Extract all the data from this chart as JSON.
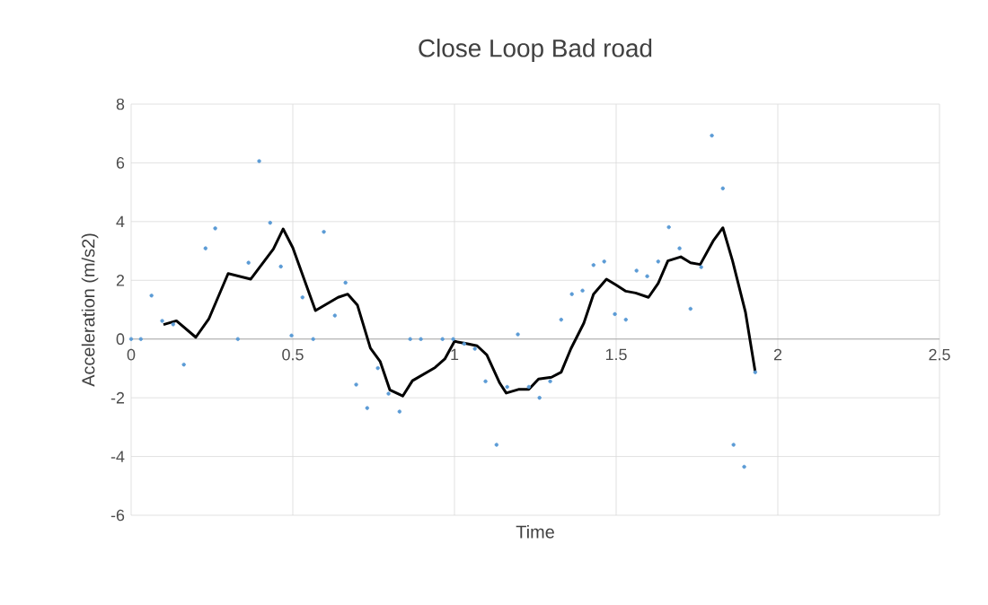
{
  "chart_data": {
    "type": "scatter",
    "title": "Close Loop Bad road",
    "xlabel": "Time",
    "ylabel": "Acceleration (m/s2)",
    "xlim": [
      0,
      2.5
    ],
    "xticks": [
      0,
      0.5,
      1,
      1.5,
      2,
      2.5
    ],
    "ylim": [
      -6,
      8
    ],
    "yticks": [
      -6,
      -4,
      -2,
      0,
      2,
      4,
      6,
      8
    ],
    "grid": true,
    "series": [
      {
        "color": "#5b9bd5",
        "marker": "circle",
        "x": [
          0,
          0.03,
          0.063,
          0.096,
          0.13,
          0.163,
          0.23,
          0.26,
          0.33,
          0.363,
          0.396,
          0.43,
          0.463,
          0.496,
          0.53,
          0.563,
          0.596,
          0.63,
          0.663,
          0.696,
          0.73,
          0.763,
          0.796,
          0.83,
          0.863,
          0.896,
          0.963,
          0.996,
          1.03,
          1.063,
          1.096,
          1.13,
          1.163,
          1.196,
          1.23,
          1.263,
          1.296,
          1.33,
          1.363,
          1.396,
          1.43,
          1.463,
          1.496,
          1.53,
          1.563,
          1.596,
          1.63,
          1.663,
          1.696,
          1.73,
          1.763,
          1.796,
          1.83,
          1.863,
          1.896,
          1.93
        ],
        "values": [
          0,
          0,
          1.48,
          0.62,
          0.5,
          -0.87,
          3.09,
          3.77,
          0,
          2.6,
          6.06,
          3.96,
          2.47,
          0.12,
          1.42,
          0,
          3.65,
          0.8,
          1.92,
          -1.55,
          -2.35,
          -0.99,
          -1.86,
          -2.47,
          0,
          0,
          0,
          0,
          -0.16,
          -0.33,
          -1.44,
          -3.6,
          -1.63,
          0.16,
          -1.63,
          -2.0,
          -1.44,
          0.66,
          1.53,
          1.65,
          2.52,
          2.64,
          0.85,
          0.66,
          2.33,
          2.14,
          2.64,
          3.81,
          3.09,
          1.03,
          2.45,
          6.93,
          5.13,
          -3.6,
          -4.35,
          -1.13
        ]
      },
      {
        "type": "line",
        "color": "#000000",
        "marker": "none",
        "line_style": "solid",
        "x": [
          0.1,
          0.14,
          0.2,
          0.24,
          0.3,
          0.37,
          0.44,
          0.47,
          0.5,
          0.57,
          0.64,
          0.67,
          0.7,
          0.74,
          0.77,
          0.8,
          0.84,
          0.87,
          0.94,
          0.97,
          1.0,
          1.04,
          1.07,
          1.1,
          1.14,
          1.16,
          1.2,
          1.23,
          1.26,
          1.3,
          1.33,
          1.36,
          1.4,
          1.43,
          1.47,
          1.5,
          1.53,
          1.56,
          1.6,
          1.63,
          1.66,
          1.7,
          1.73,
          1.76,
          1.8,
          1.83,
          1.86,
          1.9,
          1.93
        ],
        "values": [
          0.49,
          0.62,
          0.06,
          0.68,
          2.23,
          2.04,
          3.07,
          3.75,
          3.11,
          0.97,
          1.42,
          1.53,
          1.15,
          -0.31,
          -0.76,
          -1.73,
          -1.94,
          -1.42,
          -0.97,
          -0.68,
          -0.08,
          -0.16,
          -0.23,
          -0.54,
          -1.5,
          -1.84,
          -1.71,
          -1.71,
          -1.36,
          -1.3,
          -1.13,
          -0.33,
          0.54,
          1.53,
          2.04,
          1.84,
          1.63,
          1.57,
          1.42,
          1.9,
          2.66,
          2.8,
          2.6,
          2.54,
          3.34,
          3.79,
          2.66,
          0.91,
          -1.11
        ]
      }
    ]
  }
}
